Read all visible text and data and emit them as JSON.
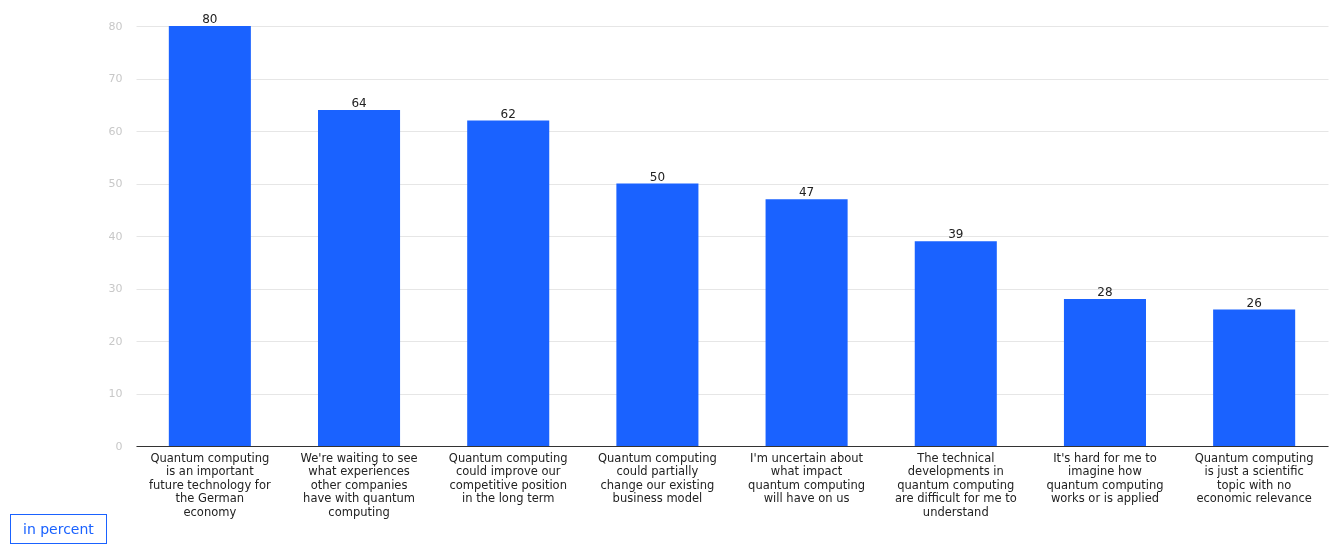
{
  "chart_data": {
    "type": "bar",
    "categories": [
      "Quantum computing is an important future technology for the German economy",
      "We're waiting to see what experiences other companies have with quantum computing",
      "Quantum computing could improve our competitive position in the long term",
      "Quantum computing could partially change our existing business model",
      "I'm uncertain about what impact quantum computing will have on us",
      "The technical developments in quantum computing are difficult for me to understand",
      "It's hard for me to imagine how quantum computing works or is applied",
      "Quantum computing is just a scientific topic with no economic relevance"
    ],
    "values": [
      80,
      64,
      62,
      50,
      47,
      39,
      28,
      26
    ],
    "color": "#1a62ff",
    "ylim": [
      0,
      80
    ],
    "yticks": [
      0,
      10,
      20,
      30,
      40,
      50,
      60,
      70,
      80
    ],
    "grid": "y",
    "data_labels": true,
    "annotations": [
      "in percent"
    ]
  }
}
